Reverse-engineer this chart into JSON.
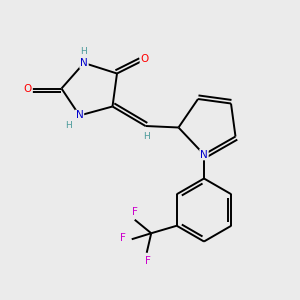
{
  "background_color": "#ebebeb",
  "atom_colors": {
    "C": "#000000",
    "N": "#0000cc",
    "O": "#ff0000",
    "F": "#cc00cc",
    "H": "#4a9a9a"
  },
  "bond_color": "#000000",
  "figsize": [
    3.0,
    3.0
  ],
  "dpi": 100
}
